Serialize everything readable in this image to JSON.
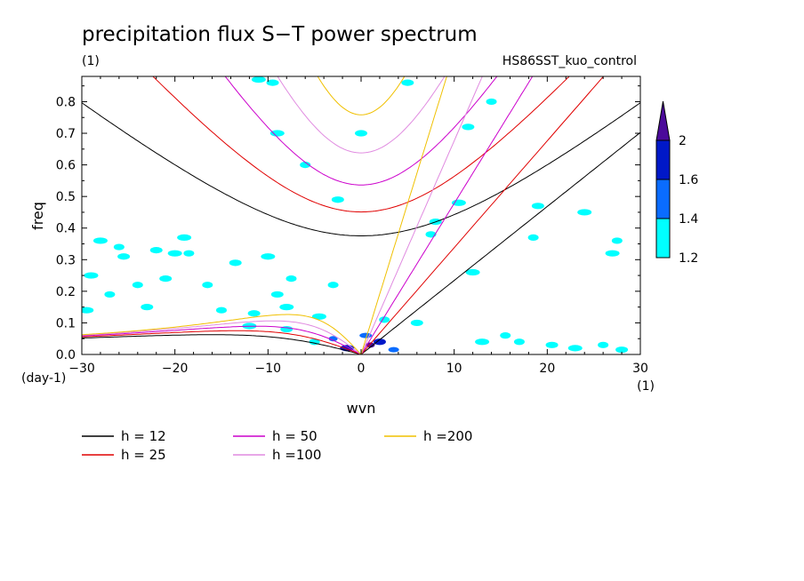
{
  "chart_data": {
    "type": "contour",
    "title": "precipitation flux S−T power spectrum",
    "subtitle_left": "(1)",
    "subtitle_right": "HS86SST_kuo_control",
    "xlabel": "wvn",
    "ylabel": "freq",
    "x_unit": "(1)",
    "y_unit": "(day-1)",
    "xlim": [
      -30,
      30
    ],
    "ylim": [
      0,
      0.88
    ],
    "x_ticks": [
      -30,
      -20,
      -10,
      0,
      10,
      20,
      30
    ],
    "y_ticks": [
      0.0,
      0.1,
      0.2,
      0.3,
      0.4,
      0.5,
      0.6,
      0.7,
      0.8
    ],
    "colorbar": {
      "levels": [
        1.2,
        1.4,
        1.6,
        2
      ],
      "colors": [
        "#00ffff",
        "#0a6cff",
        "#0018c8",
        "#4b0a9a"
      ]
    },
    "dispersion_curves": [
      {
        "label": "h = 12",
        "h": 12,
        "color": "#000000"
      },
      {
        "label": "h = 25",
        "h": 25,
        "color": "#e00000"
      },
      {
        "label": "h = 50",
        "h": 50,
        "color": "#cc00cc"
      },
      {
        "label": "h =100",
        "h": 100,
        "color": "#e08ae0"
      },
      {
        "label": "h =200",
        "h": 200,
        "color": "#f0c000"
      }
    ],
    "contour_patches": [
      {
        "x": 1.0,
        "y": 0.03,
        "level": 2
      },
      {
        "x": 2.0,
        "y": 0.04,
        "level": 1.6
      },
      {
        "x": -1.5,
        "y": 0.02,
        "level": 1.6
      },
      {
        "x": -3.0,
        "y": 0.05,
        "level": 1.4
      },
      {
        "x": 3.5,
        "y": 0.015,
        "level": 1.4
      },
      {
        "x": 0.5,
        "y": 0.06,
        "level": 1.4
      },
      {
        "x": -5.0,
        "y": 0.04,
        "level": 1.2
      },
      {
        "x": -8.0,
        "y": 0.08,
        "level": 1.2
      },
      {
        "x": -12.0,
        "y": 0.09,
        "level": 1.2
      },
      {
        "x": -15.0,
        "y": 0.14,
        "level": 1.2
      },
      {
        "x": -21.0,
        "y": 0.24,
        "level": 1.2
      },
      {
        "x": -28.0,
        "y": 0.36,
        "level": 1.2
      },
      {
        "x": -26.0,
        "y": 0.34,
        "level": 1.2
      },
      {
        "x": -22.0,
        "y": 0.33,
        "level": 1.2
      },
      {
        "x": -20.0,
        "y": 0.32,
        "level": 1.2
      },
      {
        "x": -24.0,
        "y": 0.22,
        "level": 1.2
      },
      {
        "x": -25.5,
        "y": 0.31,
        "level": 1.2
      },
      {
        "x": -29.0,
        "y": 0.25,
        "level": 1.2
      },
      {
        "x": -27.0,
        "y": 0.19,
        "level": 1.2
      },
      {
        "x": -23.0,
        "y": 0.15,
        "level": 1.2
      },
      {
        "x": -29.5,
        "y": 0.14,
        "level": 1.2
      },
      {
        "x": -18.5,
        "y": 0.32,
        "level": 1.2
      },
      {
        "x": -13.5,
        "y": 0.29,
        "level": 1.2
      },
      {
        "x": -10.0,
        "y": 0.31,
        "level": 1.2
      },
      {
        "x": -7.5,
        "y": 0.24,
        "level": 1.2
      },
      {
        "x": -9.0,
        "y": 0.19,
        "level": 1.2
      },
      {
        "x": -8.0,
        "y": 0.15,
        "level": 1.2
      },
      {
        "x": -3.0,
        "y": 0.22,
        "level": 1.2
      },
      {
        "x": -2.5,
        "y": 0.49,
        "level": 1.2
      },
      {
        "x": 10.5,
        "y": 0.48,
        "level": 1.2
      },
      {
        "x": 7.5,
        "y": 0.38,
        "level": 1.2
      },
      {
        "x": 8.0,
        "y": 0.42,
        "level": 1.2
      },
      {
        "x": 12.0,
        "y": 0.26,
        "level": 1.2
      },
      {
        "x": 17.0,
        "y": 0.04,
        "level": 1.2
      },
      {
        "x": 20.5,
        "y": 0.03,
        "level": 1.2
      },
      {
        "x": 23.0,
        "y": 0.02,
        "level": 1.2
      },
      {
        "x": 26.0,
        "y": 0.03,
        "level": 1.2
      },
      {
        "x": 28.0,
        "y": 0.015,
        "level": 1.2
      },
      {
        "x": 13.0,
        "y": 0.04,
        "level": 1.2
      },
      {
        "x": 15.5,
        "y": 0.06,
        "level": 1.2
      },
      {
        "x": 19.0,
        "y": 0.47,
        "level": 1.2
      },
      {
        "x": 24.0,
        "y": 0.45,
        "level": 1.2
      },
      {
        "x": 27.5,
        "y": 0.36,
        "level": 1.2
      },
      {
        "x": -9.5,
        "y": 0.86,
        "level": 1.2
      },
      {
        "x": -11.0,
        "y": 0.87,
        "level": 1.2
      },
      {
        "x": 14.0,
        "y": 0.8,
        "level": 1.2
      },
      {
        "x": 0.0,
        "y": 0.7,
        "level": 1.2
      },
      {
        "x": -9.0,
        "y": 0.7,
        "level": 1.2
      },
      {
        "x": -6.0,
        "y": 0.6,
        "level": 1.2
      },
      {
        "x": 11.5,
        "y": 0.72,
        "level": 1.2
      },
      {
        "x": 27.0,
        "y": 0.32,
        "level": 1.2
      },
      {
        "x": 18.5,
        "y": 0.37,
        "level": 1.2
      },
      {
        "x": 5.0,
        "y": 0.86,
        "level": 1.2
      },
      {
        "x": -19.0,
        "y": 0.37,
        "level": 1.2
      },
      {
        "x": -16.5,
        "y": 0.22,
        "level": 1.2
      },
      {
        "x": -11.5,
        "y": 0.13,
        "level": 1.2
      },
      {
        "x": -4.5,
        "y": 0.12,
        "level": 1.2
      },
      {
        "x": 2.5,
        "y": 0.11,
        "level": 1.2
      },
      {
        "x": 6.0,
        "y": 0.1,
        "level": 1.2
      }
    ]
  }
}
